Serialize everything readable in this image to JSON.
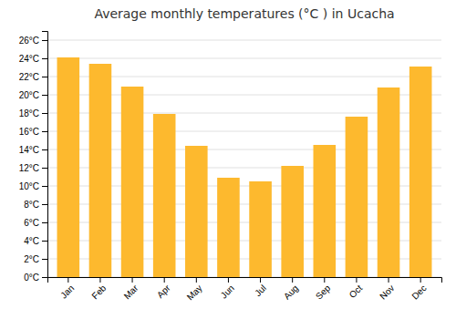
{
  "chart_data": {
    "type": "bar",
    "title": "Average monthly temperatures (°C ) in Ucacha",
    "categories": [
      "Jan",
      "Feb",
      "Mar",
      "Apr",
      "May",
      "Jun",
      "Jul",
      "Aug",
      "Sep",
      "Oct",
      "Nov",
      "Dec"
    ],
    "values": [
      24.1,
      23.4,
      20.9,
      17.9,
      14.4,
      10.9,
      10.5,
      12.2,
      14.5,
      17.6,
      20.8,
      23.1
    ],
    "color": "#FDB92E",
    "ylim": [
      0,
      27
    ],
    "yticks": [
      {
        "value": 0,
        "label": "0°C"
      },
      {
        "value": 2,
        "label": "2°C"
      },
      {
        "value": 4,
        "label": "4°C"
      },
      {
        "value": 6,
        "label": "6°C"
      },
      {
        "value": 8,
        "label": "8°C"
      },
      {
        "value": 10,
        "label": "10°C"
      },
      {
        "value": 12,
        "label": "12°C"
      },
      {
        "value": 14,
        "label": "14°C"
      },
      {
        "value": 16,
        "label": "16°C"
      },
      {
        "value": 18,
        "label": "18°C"
      },
      {
        "value": 20,
        "label": "20°C"
      },
      {
        "value": 22,
        "label": "22°C"
      },
      {
        "value": 24,
        "label": "24°C"
      },
      {
        "value": 26,
        "label": "26°C"
      }
    ],
    "grid": true
  }
}
